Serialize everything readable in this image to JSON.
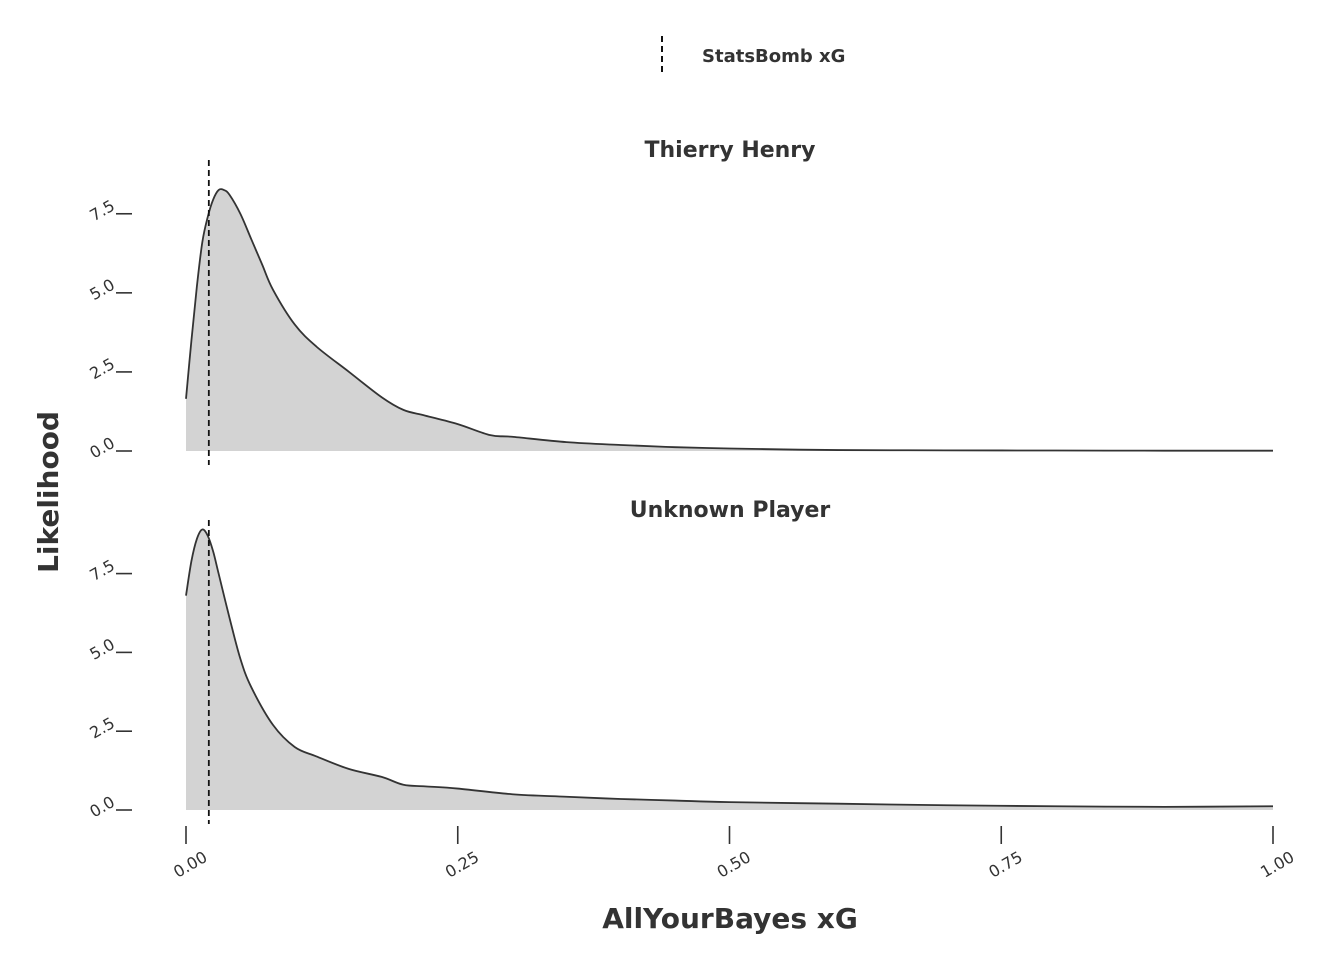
{
  "chart_data": {
    "type": "area",
    "legend": {
      "placement": "top-center",
      "entries": [
        {
          "label": "StatsBomb xG",
          "style": "dashed-vertical-line"
        }
      ]
    },
    "xlabel": "AllYourBayes xG",
    "ylabel": "Likelihood",
    "xlim": [
      0,
      1
    ],
    "x_ticks": [
      "0.00",
      "0.25",
      "0.50",
      "0.75",
      "1.00"
    ],
    "x_tick_values": [
      0,
      0.25,
      0.5,
      0.75,
      1.0
    ],
    "grid": false,
    "fill_color": "#d3d3d3",
    "line_color": "#333333",
    "panels": [
      {
        "title": "Thierry Henry",
        "ylim": [
          0,
          9.2
        ],
        "y_ticks": [
          "0.0",
          "2.5",
          "5.0",
          "7.5"
        ],
        "y_tick_values": [
          0,
          2.5,
          5.0,
          7.5
        ],
        "statsbomb_xg": 0.021,
        "x": [
          0,
          0.005,
          0.01,
          0.015,
          0.02,
          0.025,
          0.03,
          0.035,
          0.04,
          0.05,
          0.06,
          0.07,
          0.08,
          0.1,
          0.12,
          0.15,
          0.18,
          0.2,
          0.22,
          0.25,
          0.28,
          0.3,
          0.35,
          0.4,
          0.45,
          0.5,
          0.55,
          0.6,
          0.7,
          0.8,
          0.9,
          1.0
        ],
        "y": [
          1.65,
          3.5,
          5.2,
          6.6,
          7.4,
          7.95,
          8.25,
          8.25,
          8.1,
          7.5,
          6.7,
          5.9,
          5.1,
          4.0,
          3.3,
          2.5,
          1.7,
          1.3,
          1.12,
          0.85,
          0.5,
          0.45,
          0.28,
          0.19,
          0.12,
          0.08,
          0.05,
          0.03,
          0.02,
          0.015,
          0.01,
          0.01
        ]
      },
      {
        "title": "Unknown Player",
        "ylim": [
          0,
          9.2
        ],
        "y_ticks": [
          "0.0",
          "2.5",
          "5.0",
          "7.5"
        ],
        "y_tick_values": [
          0,
          2.5,
          5.0,
          7.5
        ],
        "statsbomb_xg": 0.021,
        "x": [
          0,
          0.005,
          0.01,
          0.015,
          0.02,
          0.025,
          0.03,
          0.04,
          0.05,
          0.06,
          0.08,
          0.1,
          0.12,
          0.15,
          0.18,
          0.2,
          0.22,
          0.25,
          0.3,
          0.35,
          0.4,
          0.45,
          0.5,
          0.6,
          0.7,
          0.8,
          0.9,
          1.0
        ],
        "y": [
          6.8,
          7.9,
          8.6,
          8.9,
          8.7,
          8.2,
          7.5,
          6.1,
          4.8,
          3.9,
          2.7,
          2.0,
          1.7,
          1.3,
          1.05,
          0.8,
          0.75,
          0.68,
          0.5,
          0.42,
          0.35,
          0.3,
          0.25,
          0.2,
          0.15,
          0.12,
          0.1,
          0.12
        ]
      }
    ]
  }
}
